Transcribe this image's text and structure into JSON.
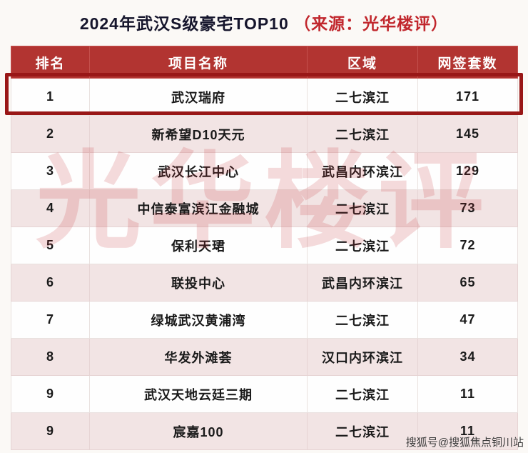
{
  "page": {
    "title_main": "2024年武汉S级豪宅TOP10",
    "title_source": "（来源：光华楼评）",
    "watermark": "光华楼评",
    "footer_credit": "搜狐号@搜狐焦点铜川站"
  },
  "colors": {
    "header_red": "#b23431",
    "highlight_border_red": "#991717",
    "alt_row_pink": "#f2e4e4",
    "title_dark": "#15152c",
    "source_red": "#c1272d",
    "watermark_red": "#c1272d"
  },
  "chart_data": {
    "type": "table",
    "title": "2024年武汉S级豪宅TOP10（来源：光华楼评）",
    "columns": [
      "排名",
      "项目名称",
      "区域",
      "网签套数"
    ],
    "rows": [
      [
        "1",
        "武汉瑞府",
        "二七滨江",
        "171"
      ],
      [
        "2",
        "新希望D10天元",
        "二七滨江",
        "145"
      ],
      [
        "3",
        "武汉长江中心",
        "武昌内环滨江",
        "129"
      ],
      [
        "4",
        "中信泰富滨江金融城",
        "二七滨江",
        "73"
      ],
      [
        "5",
        "保利天珺",
        "二七滨江",
        "72"
      ],
      [
        "6",
        "联投中心",
        "武昌内环滨江",
        "65"
      ],
      [
        "7",
        "绿城武汉黄浦湾",
        "二七滨江",
        "47"
      ],
      [
        "8",
        "华发外滩荟",
        "汉口内环滨江",
        "34"
      ],
      [
        "9",
        "武汉天地云廷三期",
        "二七滨江",
        "11"
      ],
      [
        "9",
        "宸嘉100",
        "二七滨江",
        "11"
      ]
    ],
    "highlighted_row_index": 0,
    "legend_position": "none",
    "grid": true
  }
}
